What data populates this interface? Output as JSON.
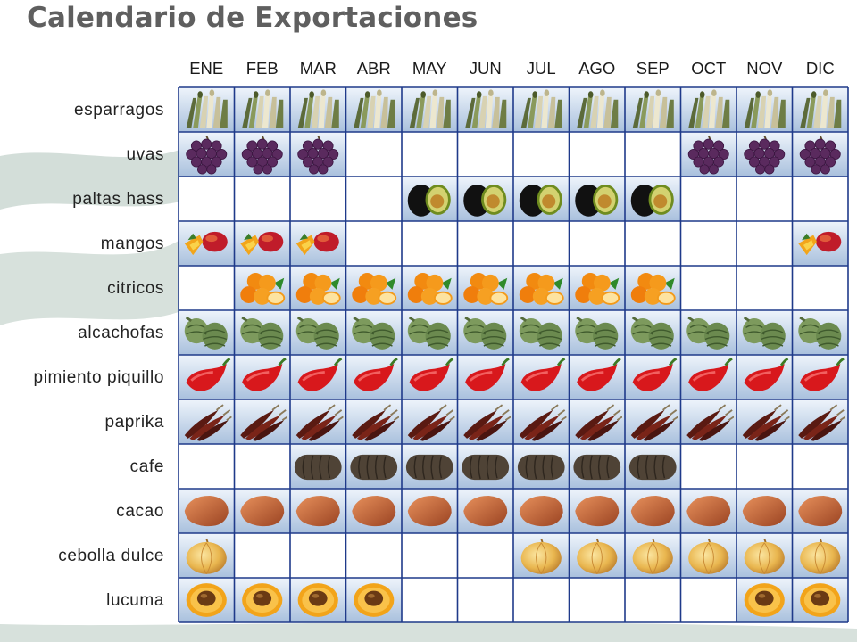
{
  "title": "Calendario de Exportaciones",
  "chart_data": {
    "type": "table",
    "title": "Calendario de Exportaciones",
    "months": [
      "ENE",
      "FEB",
      "MAR",
      "ABR",
      "MAY",
      "JUN",
      "JUL",
      "AGO",
      "SEP",
      "OCT",
      "NOV",
      "DIC"
    ],
    "products": [
      {
        "name": "esparragos",
        "icon": "asparagus-icon",
        "months": [
          1,
          1,
          1,
          1,
          1,
          1,
          1,
          1,
          1,
          1,
          1,
          1
        ]
      },
      {
        "name": "uvas",
        "icon": "grapes-icon",
        "months": [
          1,
          1,
          1,
          0,
          0,
          0,
          0,
          0,
          0,
          1,
          1,
          1
        ]
      },
      {
        "name": "paltas hass",
        "icon": "avocado-icon",
        "months": [
          0,
          0,
          0,
          0,
          1,
          1,
          1,
          1,
          1,
          0,
          0,
          0
        ]
      },
      {
        "name": "mangos",
        "icon": "mango-icon",
        "months": [
          1,
          1,
          1,
          0,
          0,
          0,
          0,
          0,
          0,
          0,
          0,
          1
        ]
      },
      {
        "name": "citricos",
        "icon": "orange-icon",
        "months": [
          0,
          1,
          1,
          1,
          1,
          1,
          1,
          1,
          1,
          0,
          0,
          0
        ]
      },
      {
        "name": "alcachofas",
        "icon": "artichoke-icon",
        "months": [
          1,
          1,
          1,
          1,
          1,
          1,
          1,
          1,
          1,
          1,
          1,
          1
        ]
      },
      {
        "name": "pimiento piquillo",
        "icon": "red-pepper-icon",
        "months": [
          1,
          1,
          1,
          1,
          1,
          1,
          1,
          1,
          1,
          1,
          1,
          1
        ]
      },
      {
        "name": "paprika",
        "icon": "dried-chili-icon",
        "months": [
          1,
          1,
          1,
          1,
          1,
          1,
          1,
          1,
          1,
          1,
          1,
          1
        ]
      },
      {
        "name": "cafe",
        "icon": "coffee-sack-icon",
        "months": [
          0,
          0,
          1,
          1,
          1,
          1,
          1,
          1,
          1,
          0,
          0,
          0
        ]
      },
      {
        "name": "cacao",
        "icon": "cacao-pod-icon",
        "months": [
          1,
          1,
          1,
          1,
          1,
          1,
          1,
          1,
          1,
          1,
          1,
          1
        ]
      },
      {
        "name": "cebolla dulce",
        "icon": "onion-icon",
        "months": [
          1,
          0,
          0,
          0,
          0,
          0,
          1,
          1,
          1,
          1,
          1,
          1
        ]
      },
      {
        "name": "lucuma",
        "icon": "lucuma-icon",
        "months": [
          1,
          1,
          1,
          1,
          0,
          0,
          0,
          0,
          0,
          0,
          1,
          1
        ]
      }
    ]
  },
  "colors": {
    "grid": "#1f3a8a",
    "filled_cell_top": "#eef4fb",
    "filled_cell_bottom": "#a9c0dd",
    "empty_cell": "#ffffff",
    "background_wave": "#d3ded9",
    "title": "#5f5f5f"
  }
}
